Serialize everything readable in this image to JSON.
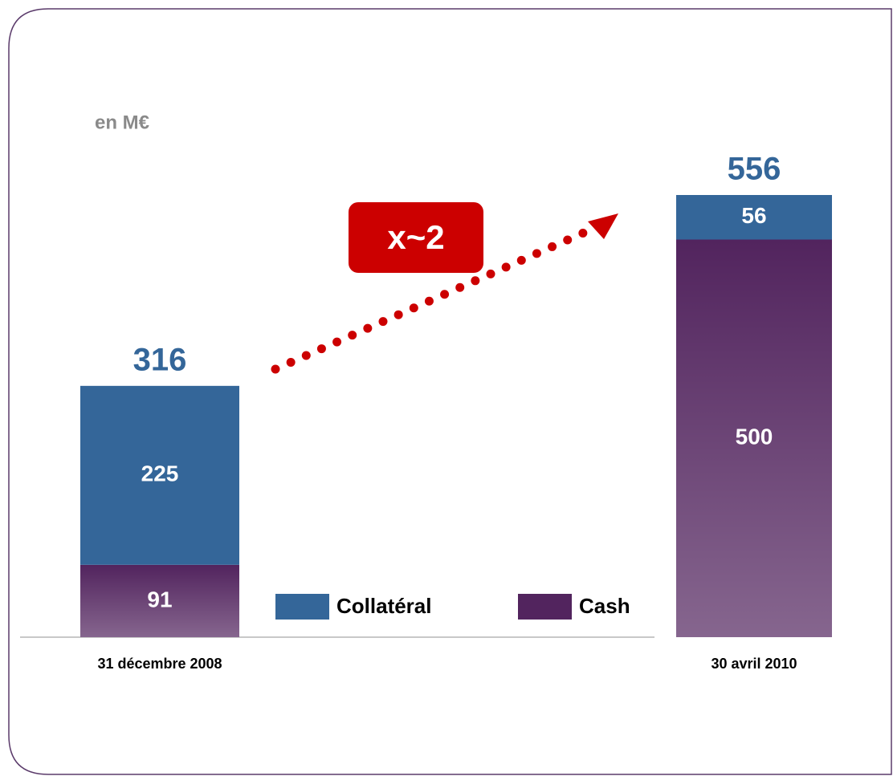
{
  "chart_data": {
    "type": "stacked_bar",
    "unit_label": "en M€",
    "annotation": "x~2",
    "categories": [
      "31 décembre 2008",
      "30 avril 2010"
    ],
    "series": [
      {
        "name": "Collatéral",
        "color": "#346699",
        "values": [
          225,
          56
        ]
      },
      {
        "name": "Cash",
        "color": "#52245e",
        "gradient": true,
        "values": [
          91,
          500
        ]
      }
    ],
    "totals": [
      316,
      556
    ]
  }
}
